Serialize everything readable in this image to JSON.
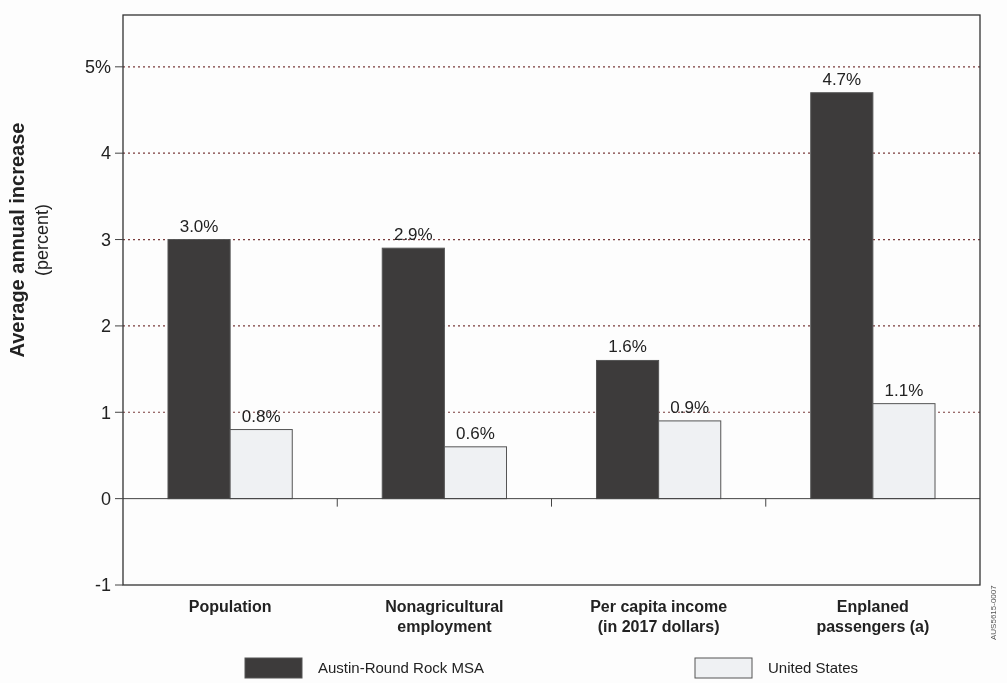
{
  "chart_data": {
    "type": "bar",
    "ylabel": "Average annual increase",
    "subtitle": "(percent)",
    "categories": [
      "Population",
      "Nonagricultural\nemployment",
      "Per capita income\n(in 2017 dollars)",
      "Enplaned\npassengers (a)"
    ],
    "series": [
      {
        "name": "Austin-Round Rock MSA",
        "color": "#3d3b3b",
        "values": [
          3.0,
          2.9,
          1.6,
          4.7
        ],
        "value_labels": [
          "3.0%",
          "2.9%",
          "1.6%",
          "4.7%"
        ]
      },
      {
        "name": "United States",
        "color": "#eff1f3",
        "values": [
          0.8,
          0.6,
          0.9,
          1.1
        ],
        "value_labels": [
          "0.8%",
          "0.6%",
          "0.9%",
          "1.1%"
        ]
      }
    ],
    "ylim": [
      -1,
      5.6
    ],
    "yticks": [
      -1,
      0,
      1,
      2,
      3,
      4,
      {
        "value": 5,
        "label": "5%"
      }
    ],
    "grid": "y",
    "legend": "bottom",
    "annotations": [
      "AUS5615-0007"
    ]
  }
}
